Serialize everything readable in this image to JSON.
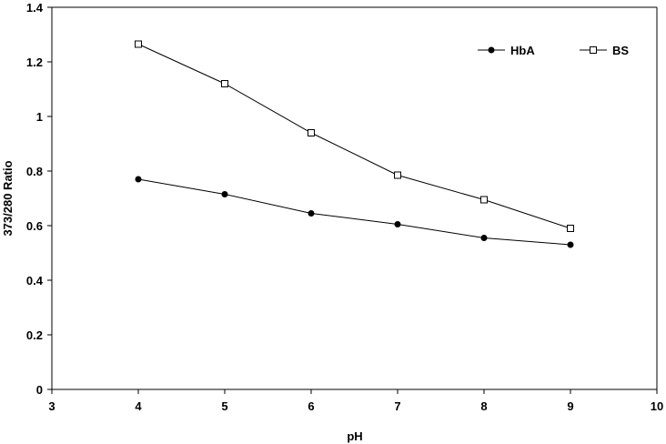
{
  "chart_data": {
    "type": "line",
    "xlabel": "pH",
    "ylabel": "373/280 Ratio",
    "xlim": [
      3,
      10
    ],
    "ylim": [
      0,
      1.4
    ],
    "xticks": [
      "3",
      "4",
      "5",
      "6",
      "7",
      "8",
      "9",
      "10"
    ],
    "yticks": [
      "0",
      "0.2",
      "0.4",
      "0.6",
      "0.8",
      "1",
      "1.2",
      "1.4"
    ],
    "grid": false,
    "legend_position": "top-right",
    "x": [
      4,
      5,
      6,
      7,
      8,
      9
    ],
    "series": [
      {
        "name": "HbA",
        "marker": "filled-circle",
        "color": "#000000",
        "values": [
          0.77,
          0.715,
          0.645,
          0.605,
          0.555,
          0.53
        ]
      },
      {
        "name": "BS",
        "marker": "open-square",
        "color": "#000000",
        "values": [
          1.265,
          1.12,
          0.94,
          0.785,
          0.695,
          0.59
        ]
      }
    ]
  }
}
